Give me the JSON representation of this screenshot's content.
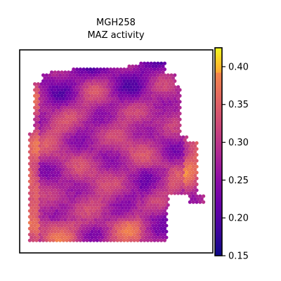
{
  "chart_data": {
    "type": "scatter",
    "title": "MGH258",
    "subtitle": "MAZ activity",
    "xlabel": "",
    "ylabel": "",
    "grid": false,
    "colormap": "plasma",
    "colorbar": {
      "range": [
        0.15,
        0.425
      ],
      "ticks": [
        0.15,
        0.2,
        0.25,
        0.3,
        0.35,
        0.4
      ],
      "tick_labels": [
        "0.15",
        "0.20",
        "0.25",
        "0.30",
        "0.35",
        "0.40"
      ]
    },
    "marker": "hexagonal spot grid",
    "description_of_values": "spatial spots colored by MAZ activity, mostly 0.24-0.34, higher (~0.38-0.42) along the lower-left and right edge, lower (~0.18-0.22) in the upper region"
  }
}
